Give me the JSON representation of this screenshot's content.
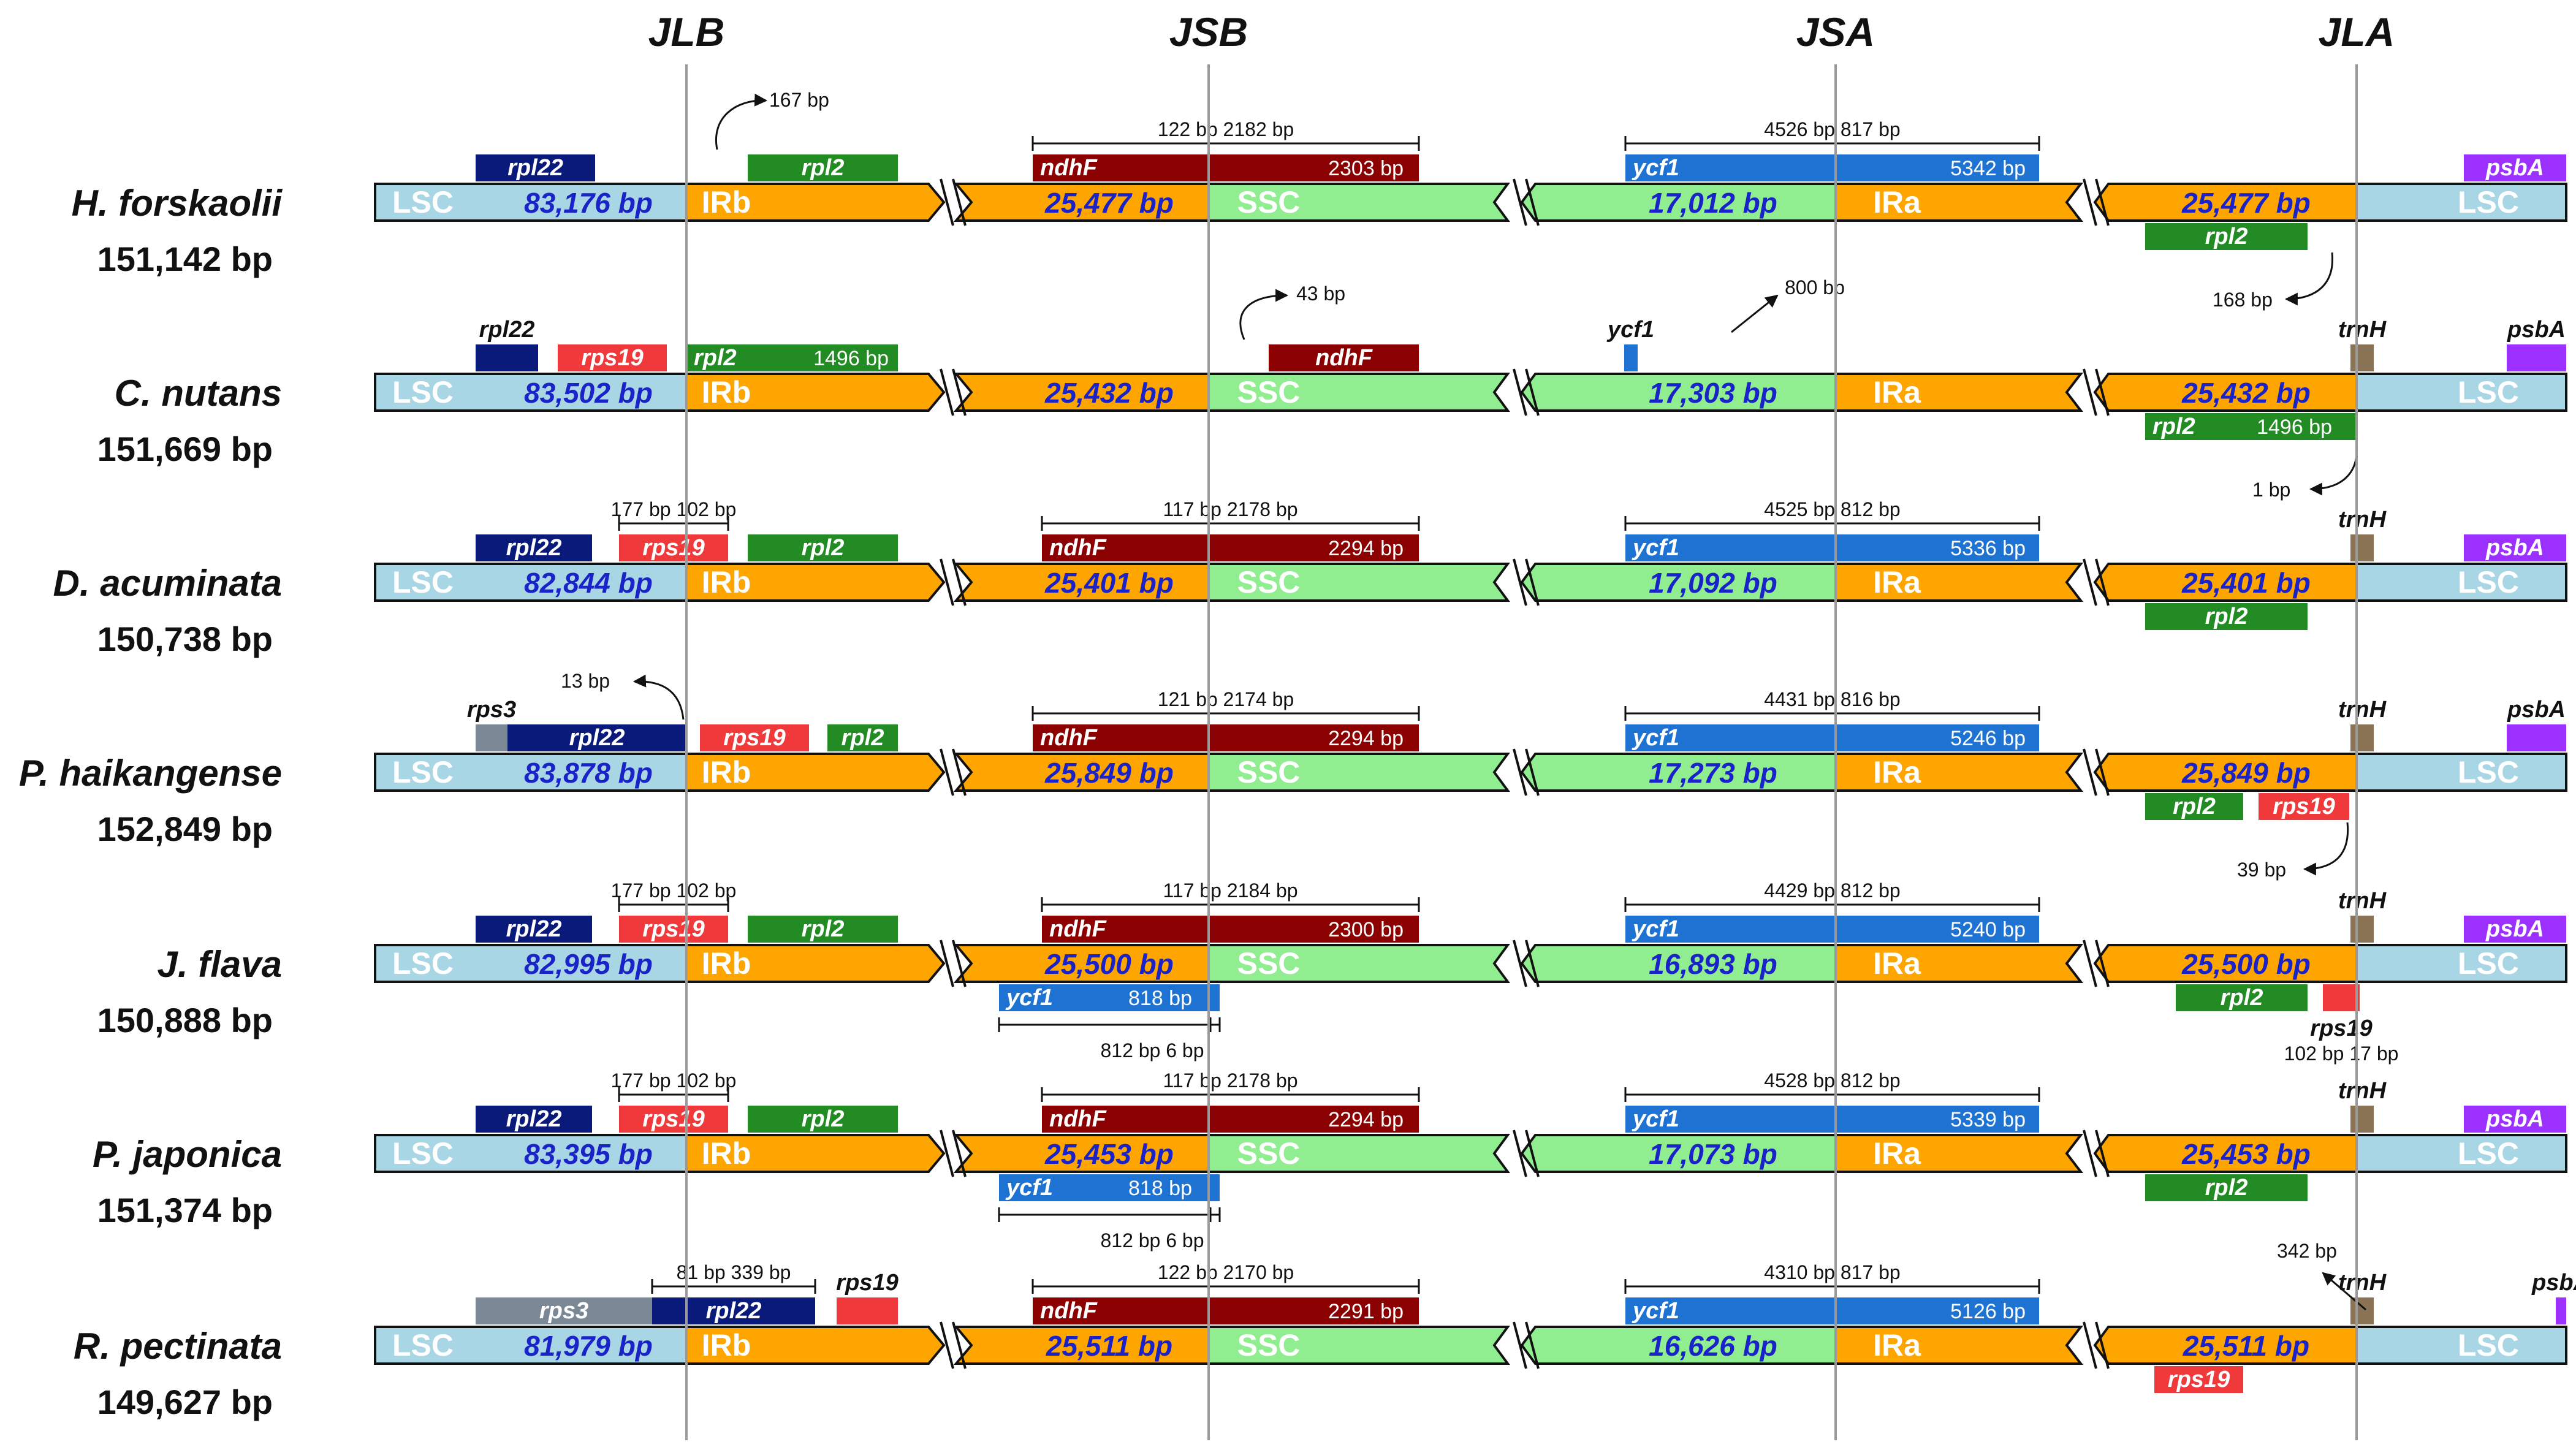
{
  "junctions": [
    "JLB",
    "JSB",
    "JSA",
    "JLA"
  ],
  "colors": {
    "LSC": "#a9d6e5",
    "IR": "#ffa500",
    "SSC": "#90ee90",
    "rpl22": "#0a1a7a",
    "rps19": "#f0393a",
    "rpl2": "#238b23",
    "ndhF": "#8b0000",
    "ycf1": "#1e73d2",
    "trnH": "#8b7355",
    "psbA": "#9b30ff",
    "rps3": "#7a8896"
  },
  "rows": [
    {
      "species": "H. forskaolii",
      "size": "151,142 bp",
      "regions": {
        "LSC": "83,176 bp",
        "IRb": "25,477 bp",
        "SSC": "17,012 bp",
        "IRa": "25,477 bp"
      },
      "region_labels": {
        "lsc": "LSC",
        "irb": "IRb",
        "ssc": "SSC",
        "ira": "IRa"
      },
      "genes": {
        "rpl22": "rpl22",
        "rpl2_top": "rpl2",
        "ndhf": "ndhF",
        "ndhf_size": "2303 bp",
        "ycf1": "ycf1",
        "ycf1_size": "5342 bp",
        "psba": "psbA",
        "rpl2_bottom": "rpl2"
      },
      "dists": {
        "jlb": "167 bp",
        "jsb": "122 bp 2182 bp",
        "jsa": "4526 bp 817 bp",
        "jla": "168 bp"
      }
    },
    {
      "species": "C. nutans",
      "size": "151,669 bp",
      "regions": {
        "LSC": "83,502 bp",
        "IRb": "25,432 bp",
        "SSC": "17,303 bp",
        "IRa": "25,432 bp"
      },
      "region_labels": {
        "lsc": "LSC",
        "irb": "IRb",
        "ssc": "SSC",
        "ira": "IRa"
      },
      "genes": {
        "rpl22": "rpl22",
        "rps19": "rps19",
        "rpl2_top": "rpl2",
        "rpl2_top_size": "1496 bp",
        "ndhf": "ndhF",
        "ycf1": "ycf1",
        "trnh": "trnH",
        "psba": "psbA",
        "rpl2_bottom": "rpl2",
        "rpl2_bottom_size": "1496 bp"
      },
      "dists": {
        "jsb": "43 bp",
        "jsa": "800 bp",
        "jla": "1 bp"
      }
    },
    {
      "species": "D. acuminata",
      "size": "150,738 bp",
      "regions": {
        "LSC": "82,844 bp",
        "IRb": "25,401 bp",
        "SSC": "17,092 bp",
        "IRa": "25,401 bp"
      },
      "region_labels": {
        "lsc": "LSC",
        "irb": "IRb",
        "ssc": "SSC",
        "ira": "IRa"
      },
      "genes": {
        "rpl22": "rpl22",
        "rps19": "rps19",
        "rpl2_top": "rpl2",
        "ndhf": "ndhF",
        "ndhf_size": "2294 bp",
        "ycf1": "ycf1",
        "ycf1_size": "5336 bp",
        "trnh": "trnH",
        "psba": "psbA",
        "rpl2_bottom": "rpl2"
      },
      "dists": {
        "jlb": "177 bp 102 bp",
        "jsb": "117 bp 2178 bp",
        "jsa": "4525 bp 812 bp"
      }
    },
    {
      "species": "P. haikangense",
      "size": "152,849 bp",
      "regions": {
        "LSC": "83,878 bp",
        "IRb": "25,849 bp",
        "SSC": "17,273 bp",
        "IRa": "25,849 bp"
      },
      "region_labels": {
        "lsc": "LSC",
        "irb": "IRb",
        "ssc": "SSC",
        "ira": "IRa"
      },
      "genes": {
        "rps3": "rps3",
        "rpl22": "rpl22",
        "rps19": "rps19",
        "rpl2_top": "rpl2",
        "ndhf": "ndhF",
        "ndhf_size": "2294 bp",
        "ycf1": "ycf1",
        "ycf1_size": "5246 bp",
        "trnh": "trnH",
        "psba": "psbA",
        "rpl2_bottom": "rpl2",
        "rps19_bottom": "rps19"
      },
      "dists": {
        "jlb": "13 bp",
        "jsb": "121 bp 2174 bp",
        "jsa": "4431 bp 816 bp",
        "jla": "39 bp"
      }
    },
    {
      "species": "J. flava",
      "size": "150,888 bp",
      "regions": {
        "LSC": "82,995 bp",
        "IRb": "25,500 bp",
        "SSC": "16,893 bp",
        "IRa": "25,500 bp"
      },
      "region_labels": {
        "lsc": "LSC",
        "irb": "IRb",
        "ssc": "SSC",
        "ira": "IRa"
      },
      "genes": {
        "rpl22": "rpl22",
        "rps19": "rps19",
        "rpl2_top": "rpl2",
        "ndhf": "ndhF",
        "ndhf_size": "2300 bp",
        "ycf1": "ycf1",
        "ycf1_size": "5240 bp",
        "ycf1_small": "ycf1",
        "ycf1_small_size": "818 bp",
        "trnh": "trnH",
        "psba": "psbA",
        "rpl2_bottom": "rpl2",
        "rps19_bottom": "rps19"
      },
      "dists": {
        "jlb": "177 bp 102 bp",
        "jsb": "117 bp 2184 bp",
        "jsa": "4429 bp 812 bp",
        "jsb_bottom": "812 bp 6 bp",
        "jla": "102 bp 17 bp"
      }
    },
    {
      "species": "P. japonica",
      "size": "151,374 bp",
      "regions": {
        "LSC": "83,395 bp",
        "IRb": "25,453 bp",
        "SSC": "17,073 bp",
        "IRa": "25,453 bp"
      },
      "region_labels": {
        "lsc": "LSC",
        "irb": "IRb",
        "ssc": "SSC",
        "ira": "IRa"
      },
      "genes": {
        "rpl22": "rpl22",
        "rps19": "rps19",
        "rpl2_top": "rpl2",
        "ndhf": "ndhF",
        "ndhf_size": "2294 bp",
        "ycf1": "ycf1",
        "ycf1_size": "5339 bp",
        "ycf1_small": "ycf1",
        "ycf1_small_size": "818 bp",
        "trnh": "trnH",
        "psba": "psbA",
        "rpl2_bottom": "rpl2"
      },
      "dists": {
        "jlb": "177 bp 102 bp",
        "jsb": "117 bp 2178 bp",
        "jsa": "4528 bp 812 bp",
        "jsb_bottom": "812 bp 6 bp"
      }
    },
    {
      "species": "R. pectinata",
      "size": "149,627 bp",
      "regions": {
        "LSC": "81,979 bp",
        "IRb": "25,511 bp",
        "SSC": "16,626 bp",
        "IRa": "25,511 bp"
      },
      "region_labels": {
        "lsc": "LSC",
        "irb": "IRb",
        "ssc": "SSC",
        "ira": "IRa"
      },
      "genes": {
        "rps3": "rps3",
        "rpl22": "rpl22",
        "rps19": "rps19",
        "ndhf": "ndhF",
        "ndhf_size": "2291 bp",
        "ycf1": "ycf1",
        "ycf1_size": "5126 bp",
        "trnh": "trnH",
        "psba": "psbA",
        "rps19_bottom": "rps19"
      },
      "dists": {
        "jlb": "81 bp 339 bp",
        "jsb": "122 bp 2170 bp",
        "jsa": "4310 bp 817 bp",
        "jla": "342 bp"
      }
    }
  ]
}
